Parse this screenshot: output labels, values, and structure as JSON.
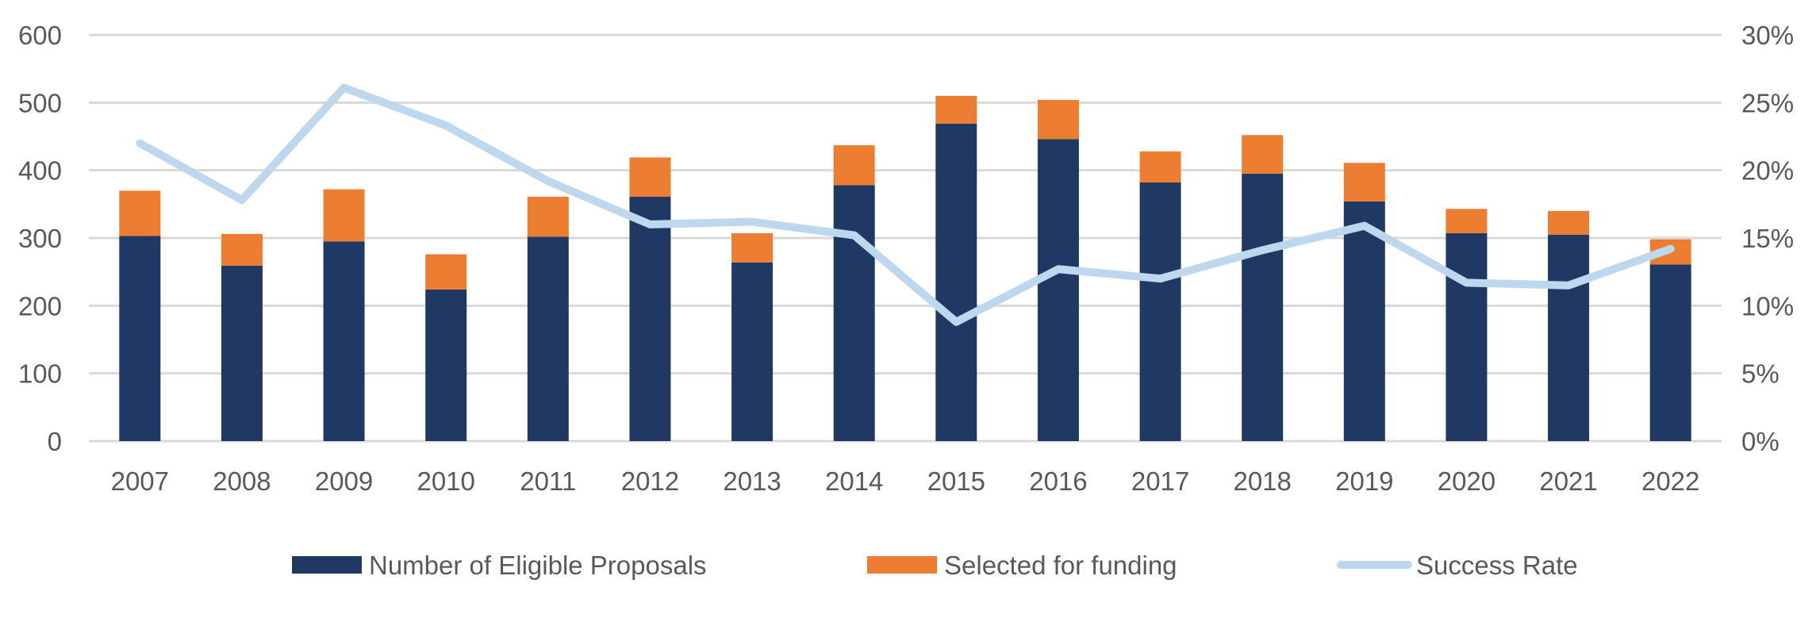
{
  "chart_data": {
    "type": "bar",
    "stacked": true,
    "title": "",
    "xlabel": "",
    "ylabel": "",
    "y2label": "",
    "categories": [
      "2007",
      "2008",
      "2009",
      "2010",
      "2011",
      "2012",
      "2013",
      "2014",
      "2015",
      "2016",
      "2017",
      "2018",
      "2019",
      "2020",
      "2021",
      "2022"
    ],
    "series": [
      {
        "name": "Number of Eligible Proposals",
        "type": "bar",
        "axis": "left",
        "color": "#203864",
        "values": [
          303,
          259,
          295,
          224,
          302,
          361,
          264,
          378,
          469,
          446,
          382,
          395,
          354,
          307,
          305,
          261
        ]
      },
      {
        "name": "Selected for funding",
        "type": "bar",
        "axis": "left",
        "color": "#ED7D31",
        "values": [
          67,
          47,
          77,
          52,
          59,
          58,
          43,
          59,
          41,
          58,
          46,
          57,
          57,
          36,
          35,
          37
        ]
      },
      {
        "name": "Success Rate",
        "type": "line",
        "axis": "right",
        "color": "#BDD7EE",
        "values": [
          0.22,
          0.178,
          0.261,
          0.233,
          0.192,
          0.16,
          0.162,
          0.152,
          0.088,
          0.127,
          0.12,
          0.141,
          0.159,
          0.117,
          0.115,
          0.142
        ]
      }
    ],
    "y_axis": {
      "min": 0,
      "max": 600,
      "ticks": [
        0,
        100,
        200,
        300,
        400,
        500,
        600
      ],
      "tick_labels": [
        "0",
        "100",
        "200",
        "300",
        "400",
        "500",
        "600"
      ]
    },
    "y2_axis": {
      "min": 0,
      "max": 0.3,
      "ticks": [
        0,
        0.05,
        0.1,
        0.15,
        0.2,
        0.25,
        0.3
      ],
      "tick_labels": [
        "0%",
        "5%",
        "10%",
        "15%",
        "20%",
        "25%",
        "30%"
      ]
    },
    "grid": true,
    "legend": {
      "position": "bottom",
      "entries": [
        "Number of Eligible Proposals",
        "Selected for funding",
        "Success Rate"
      ]
    },
    "gridline_color": "#D9D9D9",
    "text_color": "#595959"
  }
}
